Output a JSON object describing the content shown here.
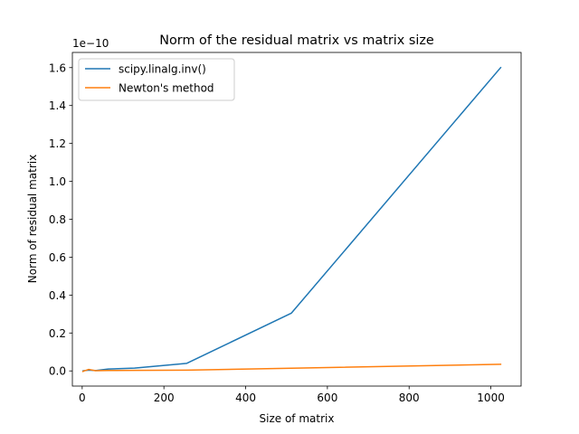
{
  "chart_data": {
    "type": "line",
    "title": "Norm of the residual matrix vs matrix size",
    "xlabel": "Size of matrix",
    "ylabel": "Norm of residual matrix",
    "y_offset_label": "1e−10",
    "xlim": [
      -24,
      1074
    ],
    "ylim": [
      -0.08,
      1.68
    ],
    "xticks": [
      0,
      200,
      400,
      600,
      800,
      1000
    ],
    "yticks": [
      0.0,
      0.2,
      0.4,
      0.6,
      0.8,
      1.0,
      1.2,
      1.4,
      1.6
    ],
    "xtick_labels": [
      "0",
      "200",
      "400",
      "600",
      "800",
      "1000"
    ],
    "ytick_labels": [
      "0.0",
      "0.2",
      "0.4",
      "0.6",
      "0.8",
      "1.0",
      "1.2",
      "1.4",
      "1.6"
    ],
    "grid": false,
    "legend_position": "top-left",
    "x": [
      2,
      4,
      8,
      16,
      32,
      64,
      128,
      256,
      512,
      1024
    ],
    "series": [
      {
        "name": "scipy.linalg.inv()",
        "color": "#1f77b4",
        "values": [
          0.0,
          0.001,
          0.002,
          0.004,
          0.002,
          0.01,
          0.015,
          0.04,
          0.305,
          1.6
        ]
      },
      {
        "name": "Newton's method",
        "color": "#ff7f0e",
        "values": [
          -0.003,
          0.0,
          0.002,
          0.008,
          0.001,
          0.002,
          0.003,
          0.004,
          0.014,
          0.035
        ]
      }
    ]
  }
}
